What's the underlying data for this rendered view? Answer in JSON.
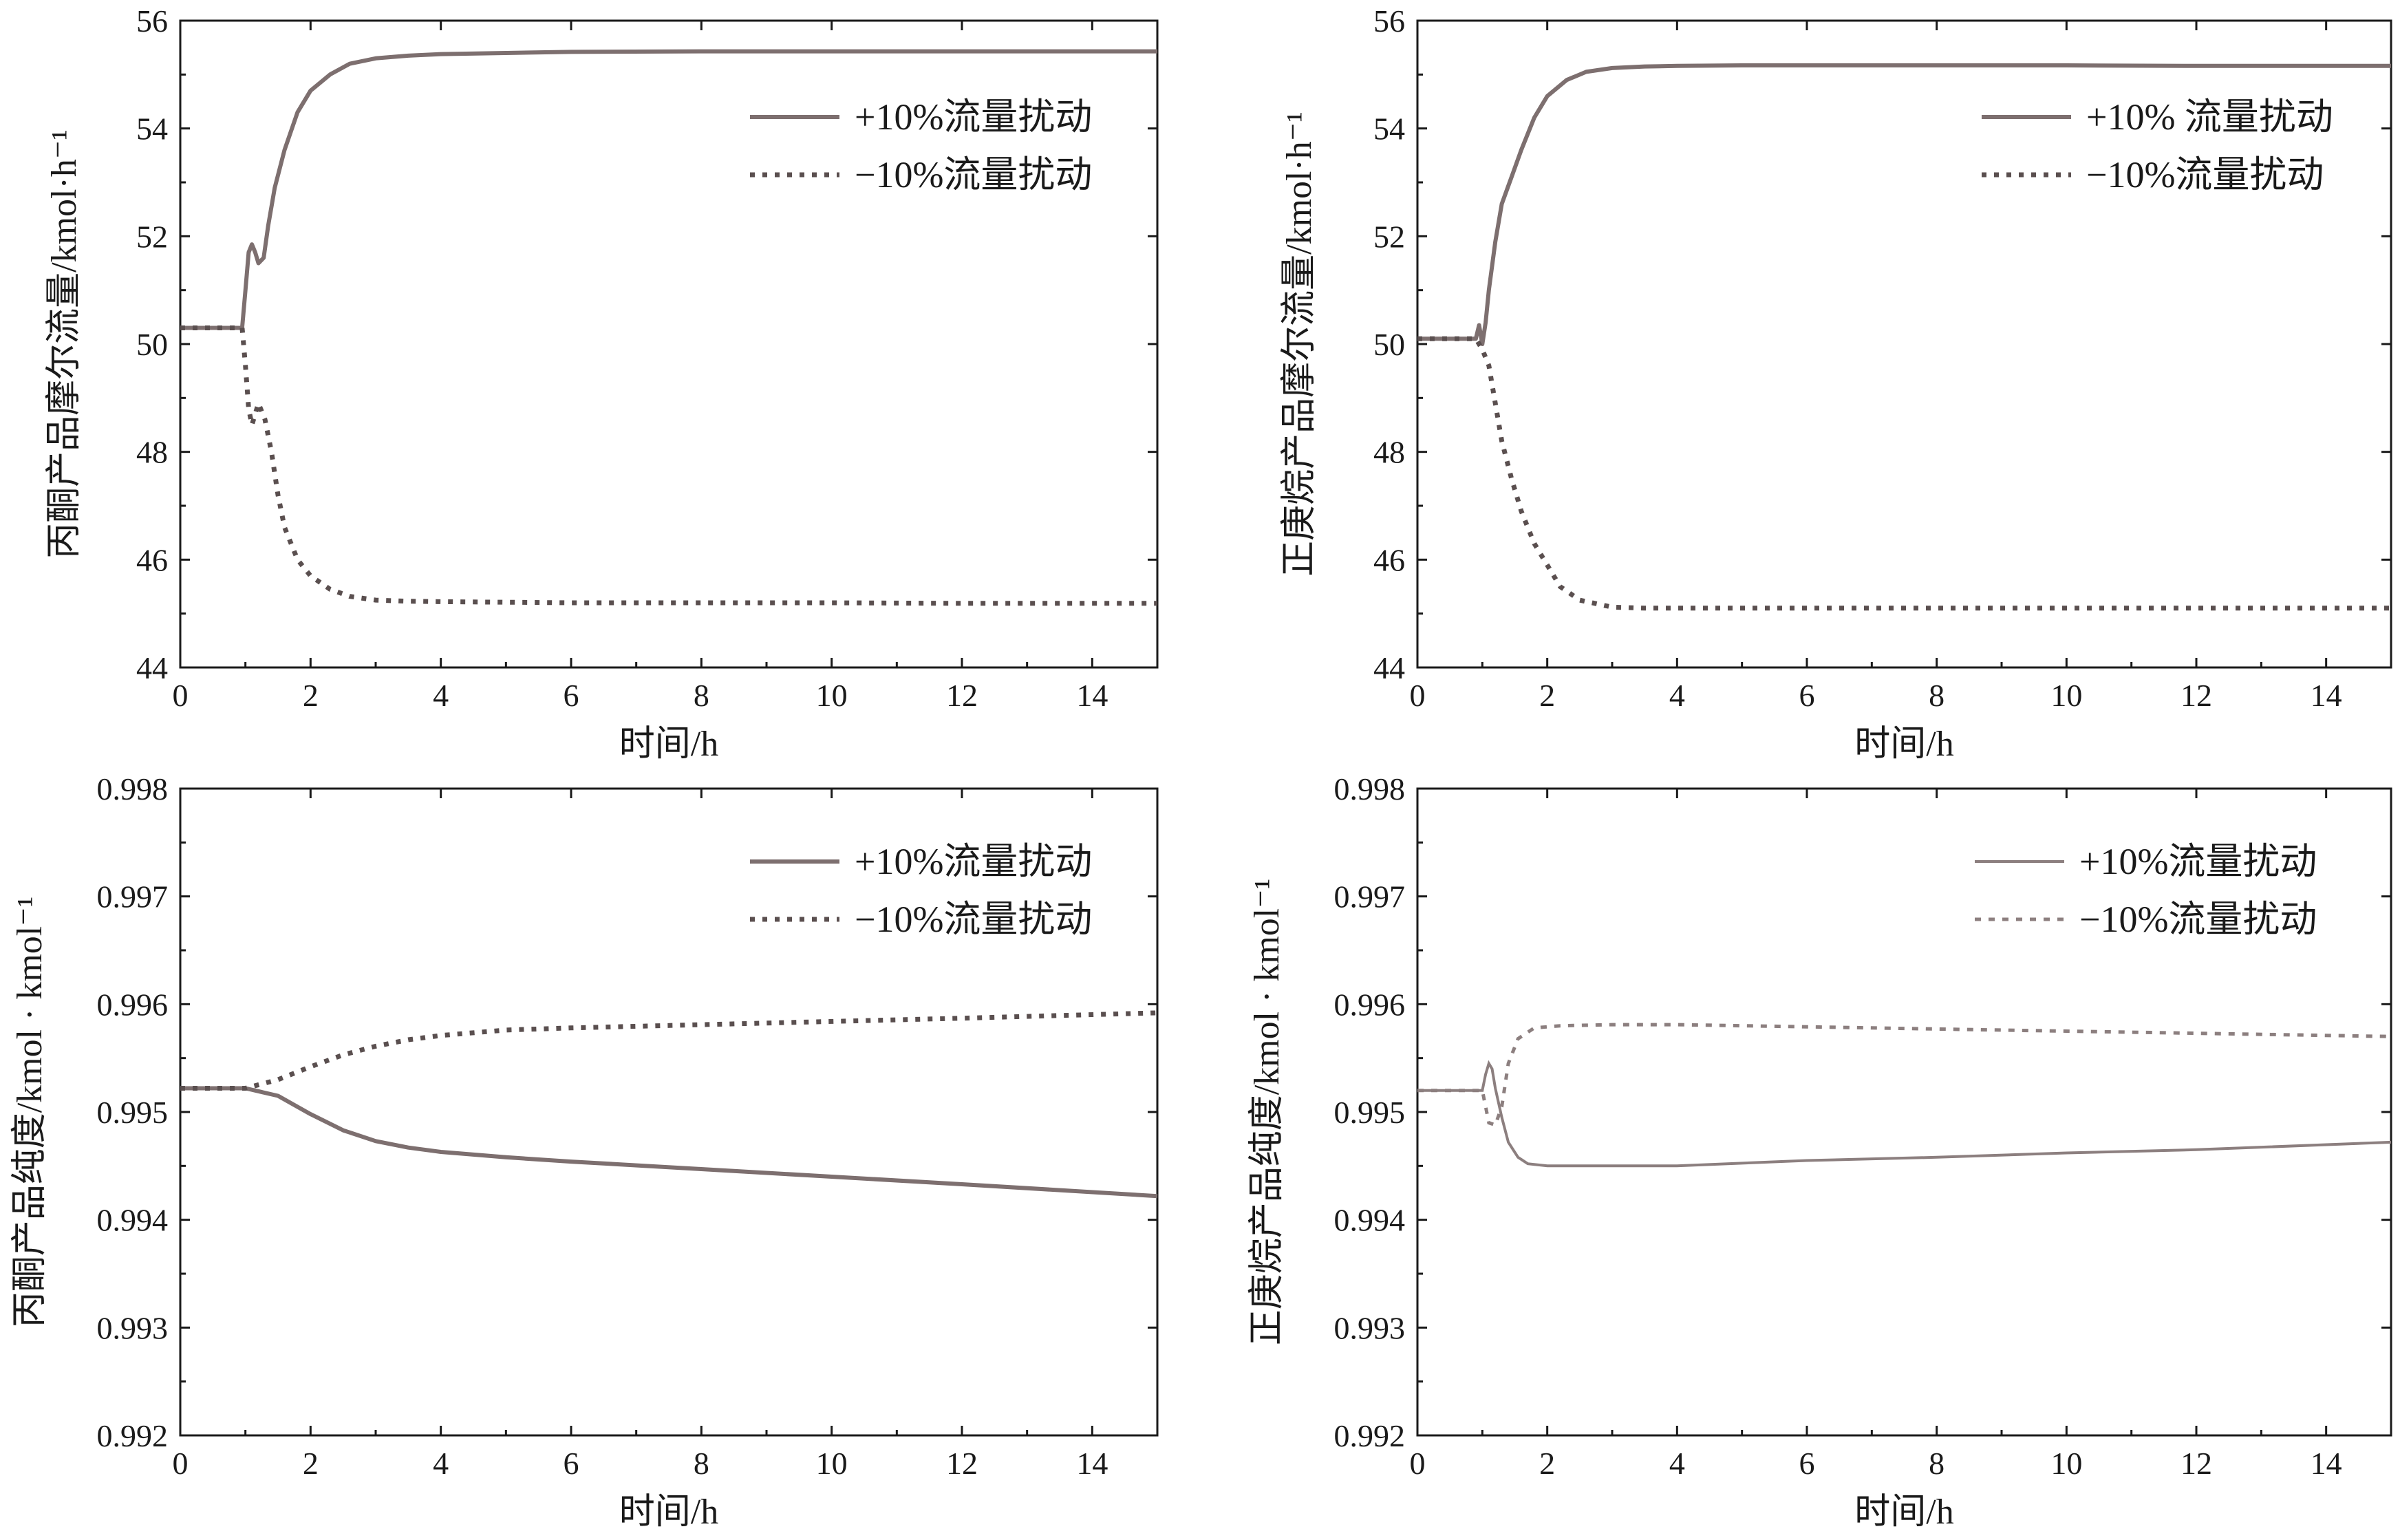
{
  "chart_data": [
    {
      "type": "line",
      "xlabel": "时间/h",
      "ylabel": "丙酮产品摩尔流量/kmol·h⁻¹",
      "xlim": [
        0,
        15
      ],
      "ylim": [
        44,
        56
      ],
      "xticks": [
        "0",
        "2",
        "4",
        "6",
        "8",
        "10",
        "12",
        "14"
      ],
      "yticks": [
        "44",
        "46",
        "48",
        "50",
        "52",
        "54",
        "56"
      ],
      "legend_position": "top-right",
      "series": [
        {
          "name": "+10%流量扰动",
          "style": "solid",
          "x": [
            0,
            0.95,
            1.0,
            1.05,
            1.1,
            1.15,
            1.2,
            1.28,
            1.35,
            1.45,
            1.6,
            1.8,
            2.0,
            2.3,
            2.6,
            3.0,
            3.5,
            4,
            5,
            6,
            8,
            10,
            12,
            15
          ],
          "y": [
            50.3,
            50.3,
            51.0,
            51.7,
            51.85,
            51.7,
            51.5,
            51.6,
            52.2,
            52.9,
            53.6,
            54.3,
            54.7,
            55.0,
            55.2,
            55.3,
            55.35,
            55.38,
            55.4,
            55.42,
            55.43,
            55.43,
            55.43,
            55.43
          ]
        },
        {
          "name": "−10%流量扰动",
          "style": "dotted",
          "x": [
            0,
            0.95,
            1.0,
            1.05,
            1.1,
            1.2,
            1.3,
            1.4,
            1.5,
            1.6,
            1.8,
            2.0,
            2.3,
            2.6,
            3.0,
            3.5,
            4,
            5,
            6,
            8,
            10,
            12,
            15
          ],
          "y": [
            50.3,
            50.3,
            49.6,
            48.8,
            48.5,
            48.9,
            48.6,
            48.0,
            47.2,
            46.6,
            46.0,
            45.7,
            45.45,
            45.32,
            45.25,
            45.23,
            45.22,
            45.21,
            45.2,
            45.2,
            45.2,
            45.19,
            45.19
          ]
        }
      ]
    },
    {
      "type": "line",
      "xlabel": "时间/h",
      "ylabel": "正庚烷产品摩尔流量/kmol·h⁻¹",
      "xlim": [
        0,
        15
      ],
      "ylim": [
        44,
        56
      ],
      "xticks": [
        "0",
        "2",
        "4",
        "6",
        "8",
        "10",
        "12",
        "14"
      ],
      "yticks": [
        "44",
        "46",
        "48",
        "50",
        "52",
        "54",
        "56"
      ],
      "legend_position": "top-right",
      "series": [
        {
          "name": "+10% 流量扰动",
          "style": "solid",
          "x": [
            0,
            0.9,
            0.95,
            1.0,
            1.05,
            1.1,
            1.2,
            1.3,
            1.45,
            1.6,
            1.8,
            2.0,
            2.3,
            2.6,
            3.0,
            3.5,
            4,
            5,
            6,
            8,
            10,
            12,
            15
          ],
          "y": [
            50.1,
            50.1,
            50.35,
            50.0,
            50.4,
            51.0,
            51.9,
            52.6,
            53.1,
            53.6,
            54.2,
            54.6,
            54.9,
            55.05,
            55.12,
            55.15,
            55.16,
            55.17,
            55.17,
            55.17,
            55.17,
            55.16,
            55.16
          ]
        },
        {
          "name": "−10%流量扰动",
          "style": "dotted",
          "x": [
            0,
            0.9,
            1.0,
            1.1,
            1.2,
            1.3,
            1.45,
            1.6,
            1.8,
            2.0,
            2.2,
            2.5,
            3.0,
            3.5,
            4,
            5,
            6,
            8,
            10,
            12,
            15
          ],
          "y": [
            50.1,
            50.1,
            49.9,
            49.6,
            48.9,
            48.2,
            47.5,
            46.9,
            46.3,
            45.9,
            45.5,
            45.25,
            45.12,
            45.1,
            45.1,
            45.1,
            45.1,
            45.1,
            45.1,
            45.1,
            45.1
          ]
        }
      ]
    },
    {
      "type": "line",
      "xlabel": "时间/h",
      "ylabel": "丙酮产品纯度/kmol · kmol⁻¹",
      "xlim": [
        0,
        15
      ],
      "ylim": [
        0.992,
        0.998
      ],
      "xticks": [
        "0",
        "2",
        "4",
        "6",
        "8",
        "10",
        "12",
        "14"
      ],
      "yticks": [
        "0.992",
        "0.993",
        "0.994",
        "0.995",
        "0.996",
        "0.997",
        "0.998"
      ],
      "legend_position": "top-right",
      "series": [
        {
          "name": "+10%流量扰动",
          "style": "solid",
          "x": [
            0,
            1,
            1.5,
            2,
            2.5,
            3,
            3.5,
            4,
            5,
            6,
            8,
            10,
            12,
            15
          ],
          "y": [
            0.99522,
            0.99522,
            0.99515,
            0.99498,
            0.99483,
            0.99473,
            0.99467,
            0.99463,
            0.99458,
            0.99454,
            0.99447,
            0.9944,
            0.99433,
            0.99422
          ]
        },
        {
          "name": "−10%流量扰动",
          "style": "dotted",
          "x": [
            0,
            1,
            1.5,
            2,
            2.5,
            3,
            3.5,
            4,
            5,
            6,
            8,
            10,
            12,
            15
          ],
          "y": [
            0.99522,
            0.99522,
            0.9953,
            0.99542,
            0.99553,
            0.99561,
            0.99567,
            0.99571,
            0.99576,
            0.99578,
            0.99581,
            0.99584,
            0.99587,
            0.99592
          ]
        }
      ]
    },
    {
      "type": "line",
      "xlabel": "时间/h",
      "ylabel": "正庚烷产品纯度/kmol · kmol⁻¹",
      "xlim": [
        0,
        15
      ],
      "ylim": [
        0.992,
        0.998
      ],
      "xticks": [
        "0",
        "2",
        "4",
        "6",
        "8",
        "10",
        "12",
        "14"
      ],
      "yticks": [
        "0.992",
        "0.993",
        "0.994",
        "0.995",
        "0.996",
        "0.997",
        "0.998"
      ],
      "legend_position": "top-right",
      "series": [
        {
          "name": "+10%流量扰动",
          "style": "solid",
          "x": [
            0,
            1,
            1.05,
            1.1,
            1.15,
            1.2,
            1.3,
            1.4,
            1.55,
            1.7,
            2.0,
            3,
            4,
            6,
            8,
            10,
            12,
            15
          ],
          "y": [
            0.9952,
            0.9952,
            0.99535,
            0.99545,
            0.9954,
            0.99522,
            0.99495,
            0.99472,
            0.99458,
            0.99452,
            0.9945,
            0.9945,
            0.9945,
            0.99455,
            0.99458,
            0.99462,
            0.99465,
            0.99472
          ]
        },
        {
          "name": "−10%流量扰动",
          "style": "dotted",
          "x": [
            0,
            1,
            1.05,
            1.1,
            1.2,
            1.3,
            1.4,
            1.55,
            1.8,
            2.2,
            3,
            4,
            6,
            8,
            10,
            12,
            15
          ],
          "y": [
            0.9952,
            0.9952,
            0.99505,
            0.9949,
            0.99488,
            0.99505,
            0.99545,
            0.99568,
            0.99578,
            0.9958,
            0.99581,
            0.99581,
            0.99579,
            0.99577,
            0.99575,
            0.99573,
            0.9957
          ]
        }
      ]
    }
  ]
}
